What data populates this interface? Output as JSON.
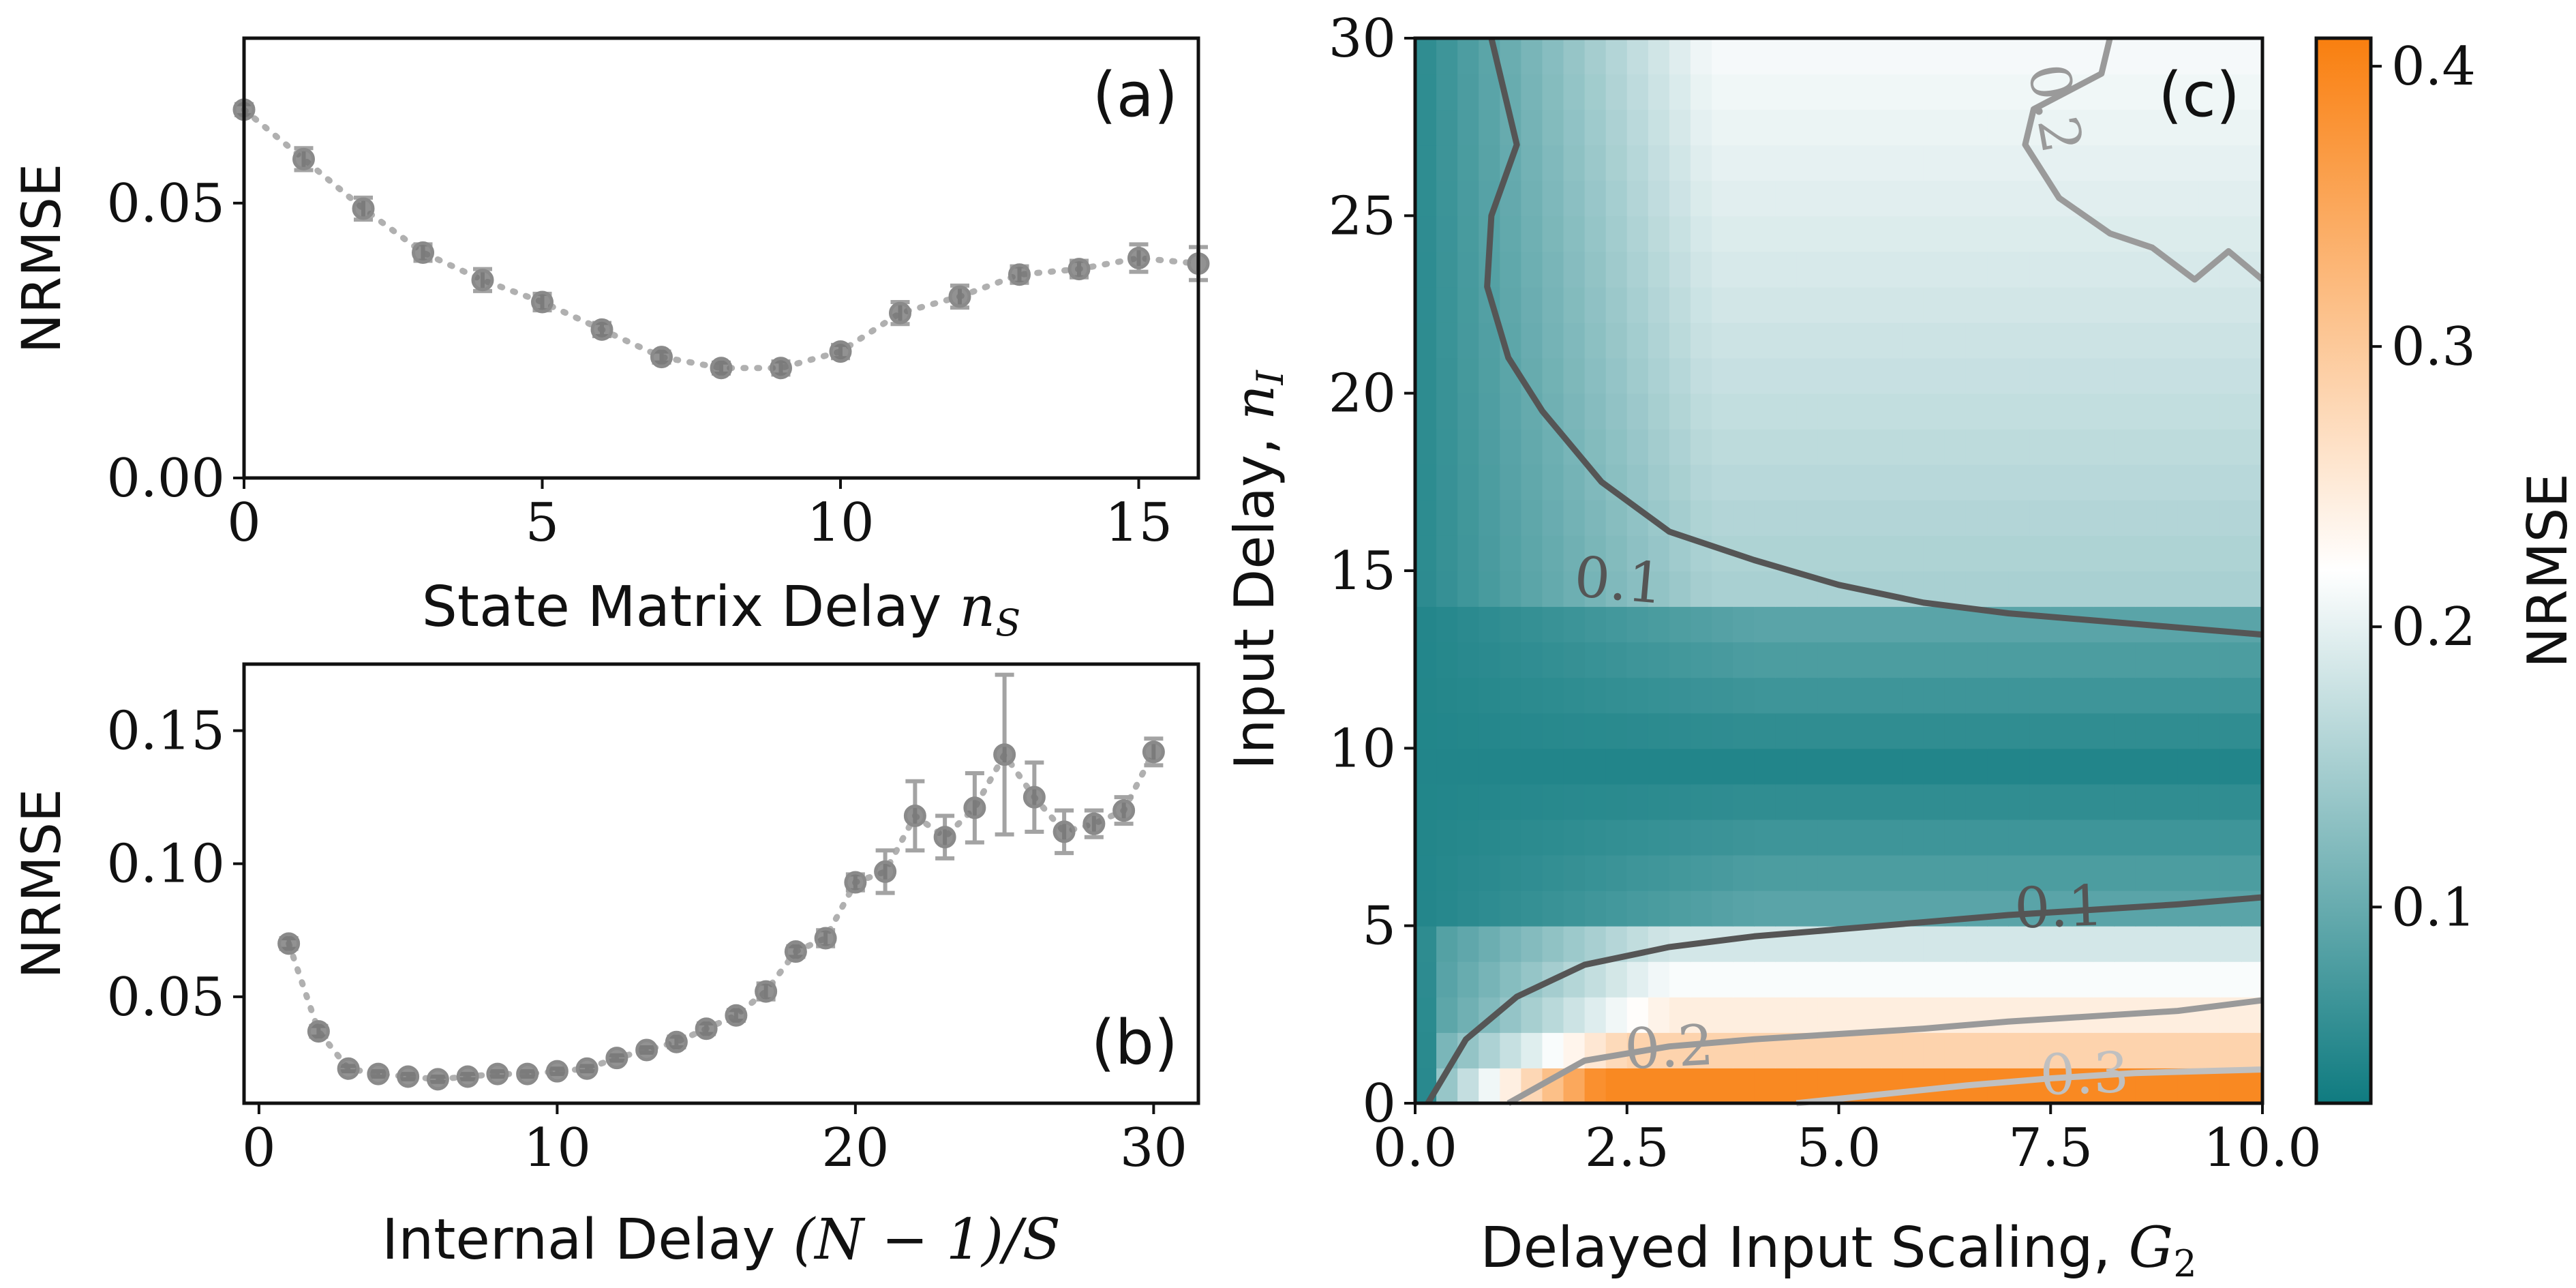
{
  "figure": {
    "panels": [
      {
        "panel_label": "(a)",
        "xlabel": "State Matrix Delay n_S",
        "xlabel_plain": "State Matrix Delay ",
        "xlabel_sym": "n",
        "xlabel_sub": "S",
        "ylabel": "NRMSE",
        "xticks": [
          "0",
          "5",
          "10",
          "15"
        ],
        "yticks": [
          "0.00",
          "0.05"
        ]
      },
      {
        "panel_label": "(b)",
        "xlabel": "Internal Delay (N − 1)/S",
        "xlabel_plain": "Internal Delay ",
        "xlabel_sym": "(N − 1)/S",
        "ylabel": "NRMSE",
        "xticks": [
          "0",
          "10",
          "20",
          "30"
        ],
        "yticks": [
          "0.05",
          "0.10",
          "0.15"
        ]
      },
      {
        "panel_label": "(c)",
        "xlabel": "Delayed Input Scaling, G_2",
        "xlabel_plain": "Delayed Input Scaling, ",
        "xlabel_sym": "G",
        "xlabel_sub": "2",
        "ylabel": "Input Delay, n_I",
        "ylabel_plain": "Input Delay, ",
        "ylabel_sym": "n",
        "ylabel_sub": "I",
        "xticks": [
          "0.0",
          "2.5",
          "5.0",
          "7.5",
          "10.0"
        ],
        "yticks": [
          "0",
          "5",
          "10",
          "15",
          "20",
          "25",
          "30"
        ],
        "contour_labels": [
          "0.1",
          "0.1",
          "0.2",
          "0.2",
          "0.3"
        ],
        "colorbar_label": "NRMSE",
        "colorbar_ticks": [
          "0.1",
          "0.2",
          "0.3",
          "0.4"
        ]
      }
    ]
  },
  "chart_data": [
    {
      "type": "line",
      "panel": "(a)",
      "xlabel": "State Matrix Delay n_S",
      "ylabel": "NRMSE",
      "xlim": [
        0,
        16
      ],
      "ylim": [
        0,
        0.08
      ],
      "grid": false,
      "style": {
        "color": "#606060",
        "line": "dotted",
        "marker": "circle",
        "error_bars": true
      },
      "x": [
        0,
        1,
        2,
        3,
        4,
        5,
        6,
        7,
        8,
        9,
        10,
        11,
        12,
        13,
        14,
        15,
        16
      ],
      "y": [
        0.067,
        0.058,
        0.049,
        0.041,
        0.036,
        0.032,
        0.027,
        0.022,
        0.02,
        0.02,
        0.023,
        0.03,
        0.033,
        0.037,
        0.038,
        0.04,
        0.039
      ],
      "yerr": [
        0.001,
        0.002,
        0.002,
        0.0015,
        0.002,
        0.0015,
        0.0012,
        0.001,
        0.001,
        0.0012,
        0.0012,
        0.002,
        0.002,
        0.0015,
        0.0015,
        0.0025,
        0.003
      ]
    },
    {
      "type": "line",
      "panel": "(b)",
      "xlabel": "Internal Delay (N − 1)/S",
      "ylabel": "NRMSE",
      "xlim": [
        -0.5,
        31.5
      ],
      "ylim": [
        0.01,
        0.175
      ],
      "grid": false,
      "style": {
        "color": "#606060",
        "line": "dotted",
        "marker": "circle",
        "error_bars": true
      },
      "x": [
        1,
        2,
        3,
        4,
        5,
        6,
        7,
        8,
        9,
        10,
        11,
        12,
        13,
        14,
        15,
        16,
        17,
        18,
        19,
        20,
        21,
        22,
        23,
        24,
        25,
        26,
        27,
        28,
        29,
        30
      ],
      "y": [
        0.07,
        0.037,
        0.023,
        0.021,
        0.02,
        0.019,
        0.02,
        0.021,
        0.021,
        0.022,
        0.023,
        0.027,
        0.03,
        0.033,
        0.038,
        0.043,
        0.052,
        0.067,
        0.072,
        0.093,
        0.097,
        0.118,
        0.11,
        0.121,
        0.141,
        0.125,
        0.112,
        0.115,
        0.12,
        0.142
      ],
      "yerr": [
        0.002,
        0.002,
        0.001,
        0.001,
        0.001,
        0.001,
        0.001,
        0.001,
        0.001,
        0.001,
        0.001,
        0.001,
        0.001,
        0.002,
        0.002,
        0.002,
        0.003,
        0.002,
        0.003,
        0.003,
        0.008,
        0.013,
        0.008,
        0.013,
        0.03,
        0.013,
        0.008,
        0.005,
        0.005,
        0.005
      ]
    },
    {
      "type": "heatmap",
      "panel": "(c)",
      "xlabel": "Delayed Input Scaling, G_2",
      "ylabel": "Input Delay, n_I",
      "xlim": [
        0,
        10
      ],
      "ylim": [
        0,
        30
      ],
      "colorbar": {
        "label": "NRMSE",
        "range": [
          0.03,
          0.41
        ],
        "colors": [
          "#0f7b80",
          "#ffffff",
          "#f97f0f"
        ],
        "center": 0.22
      },
      "approximate_regions": [
        {
          "n_I": "0-1",
          "G_2": "2-10",
          "NRMSE": "0.30-0.41"
        },
        {
          "n_I": "1-2",
          "G_2": "1-10",
          "NRMSE": "0.22-0.32"
        },
        {
          "n_I": "2-5",
          "G_2": "0.5-10",
          "NRMSE": "0.10-0.20"
        },
        {
          "n_I": "5-14",
          "G_2": "0-10",
          "NRMSE": "0.04-0.10"
        },
        {
          "n_I": "14-30",
          "G_2": "1-10",
          "NRMSE": "0.10-0.21"
        }
      ],
      "contours": [
        {
          "level": 0.1,
          "color": "#555555",
          "points": [
            [
              0.15,
              0
            ],
            [
              0.6,
              1.8
            ],
            [
              1.2,
              3.0
            ],
            [
              2.0,
              3.9
            ],
            [
              3.0,
              4.4
            ],
            [
              4.0,
              4.7
            ],
            [
              5.0,
              4.9
            ],
            [
              6.0,
              5.1
            ],
            [
              7.0,
              5.3
            ],
            [
              8.0,
              5.45
            ],
            [
              9.0,
              5.6
            ],
            [
              10.0,
              5.8
            ]
          ]
        },
        {
          "level": 0.1,
          "color": "#555555",
          "points": [
            [
              0.9,
              30
            ],
            [
              1.2,
              27
            ],
            [
              0.9,
              25
            ],
            [
              0.85,
              23
            ],
            [
              1.1,
              21
            ],
            [
              1.5,
              19.5
            ],
            [
              2.2,
              17.5
            ],
            [
              3.0,
              16.1
            ],
            [
              4.0,
              15.3
            ],
            [
              5.0,
              14.6
            ],
            [
              6.0,
              14.1
            ],
            [
              7.0,
              13.8
            ],
            [
              8.0,
              13.6
            ],
            [
              9.0,
              13.4
            ],
            [
              10.0,
              13.2
            ]
          ]
        },
        {
          "level": 0.2,
          "color": "#9a9a9a",
          "points": [
            [
              1.1,
              0
            ],
            [
              2.0,
              1.2
            ],
            [
              3.0,
              1.6
            ],
            [
              4.0,
              1.8
            ],
            [
              5.0,
              1.95
            ],
            [
              6.0,
              2.1
            ],
            [
              7.0,
              2.3
            ],
            [
              8.0,
              2.45
            ],
            [
              9.0,
              2.6
            ],
            [
              10.0,
              2.9
            ]
          ]
        },
        {
          "level": 0.2,
          "color": "#9a9a9a",
          "points": [
            [
              8.2,
              30
            ],
            [
              8.1,
              29
            ],
            [
              7.3,
              28
            ],
            [
              7.2,
              27
            ],
            [
              7.6,
              25.5
            ],
            [
              8.2,
              24.5
            ],
            [
              8.7,
              24.1
            ],
            [
              9.2,
              23.2
            ],
            [
              9.6,
              24
            ],
            [
              10.0,
              23.2
            ]
          ]
        },
        {
          "level": 0.3,
          "color": "#c0c0c0",
          "points": [
            [
              4.5,
              0
            ],
            [
              5.5,
              0.25
            ],
            [
              6.5,
              0.5
            ],
            [
              7.5,
              0.7
            ],
            [
              8.5,
              0.85
            ],
            [
              10.0,
              0.95
            ]
          ]
        }
      ]
    }
  ]
}
